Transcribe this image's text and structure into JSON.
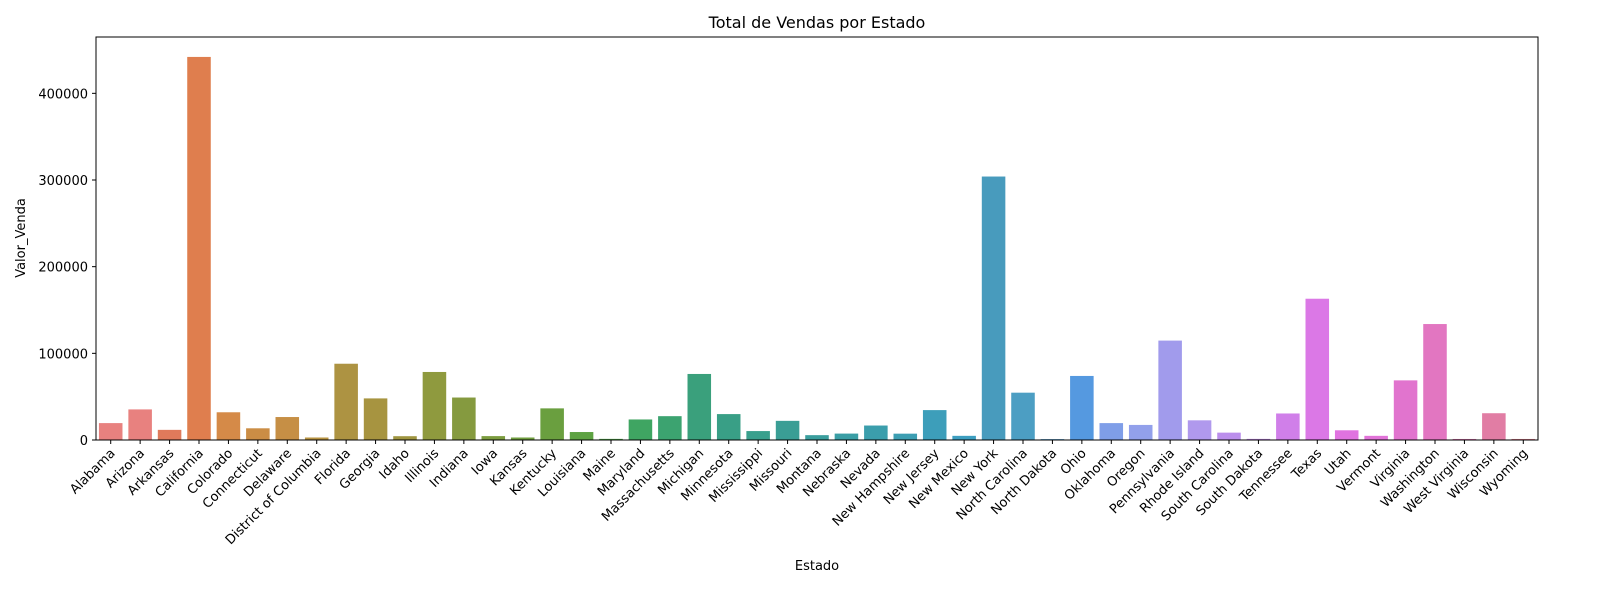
{
  "chart_data": {
    "type": "bar",
    "title": "Total de Vendas por Estado",
    "xlabel": "Estado",
    "ylabel": "Valor_Venda",
    "ylim": [
      0,
      465000
    ],
    "yticks": [
      0,
      100000,
      200000,
      300000,
      400000
    ],
    "ytick_labels": [
      "0",
      "100000",
      "200000",
      "300000",
      "400000"
    ],
    "grid": false,
    "legend": "none",
    "categories": [
      "Alabama",
      "Arizona",
      "Arkansas",
      "California",
      "Colorado",
      "Connecticut",
      "Delaware",
      "District of Columbia",
      "Florida",
      "Georgia",
      "Idaho",
      "Illinois",
      "Indiana",
      "Iowa",
      "Kansas",
      "Kentucky",
      "Louisiana",
      "Maine",
      "Maryland",
      "Massachusetts",
      "Michigan",
      "Minnesota",
      "Mississippi",
      "Missouri",
      "Montana",
      "Nebraska",
      "Nevada",
      "New Hampshire",
      "New Jersey",
      "New Mexico",
      "New York",
      "North Carolina",
      "North Dakota",
      "Ohio",
      "Oklahoma",
      "Oregon",
      "Pennsylvania",
      "Rhode Island",
      "South Carolina",
      "South Dakota",
      "Tennessee",
      "Texas",
      "Utah",
      "Vermont",
      "Virginia",
      "Washington",
      "West Virginia",
      "Wisconsin",
      "Wyoming"
    ],
    "values": [
      19500,
      35300,
      11700,
      442000,
      32000,
      13500,
      26500,
      2900,
      88000,
      48000,
      4400,
      78500,
      49000,
      4500,
      2900,
      36500,
      9200,
      1300,
      23700,
      27500,
      76200,
      29900,
      10300,
      22100,
      5600,
      7400,
      16700,
      7300,
      34500,
      4800,
      304000,
      54600,
      1000,
      73900,
      19500,
      17400,
      114700,
      22700,
      8500,
      1300,
      30600,
      163000,
      11200,
      4800,
      68800,
      133800,
      1200,
      30900,
      1200
    ],
    "colors": [
      "#e8817f",
      "#e8817f",
      "#df7a5b",
      "#df7e4e",
      "#d58a48",
      "#cb8d45",
      "#c68f45",
      "#b89442",
      "#ad9342",
      "#a79440",
      "#9f9540",
      "#8f9a3e",
      "#859a3f",
      "#7c9c3f",
      "#709e3f",
      "#6a9f3f",
      "#5da242",
      "#4ea648",
      "#3fa562",
      "#3ca370",
      "#3aa07c",
      "#399f86",
      "#39a08d",
      "#3a9e95",
      "#3a9e9d",
      "#3a9ea5",
      "#3b9eac",
      "#3c9eb2",
      "#3d9eba",
      "#3d9ec0",
      "#489bbd",
      "#4c9ec3",
      "#4b99d3",
      "#5599e0",
      "#7f9ee8",
      "#92a0eb",
      "#a19bec",
      "#b099ed",
      "#bb8eec",
      "#c58aed",
      "#d07fe9",
      "#db78e6",
      "#e073e0",
      "#e173d8",
      "#e174ce",
      "#e276c1",
      "#e178b5",
      "#e17da4",
      "#e17f8f"
    ]
  }
}
